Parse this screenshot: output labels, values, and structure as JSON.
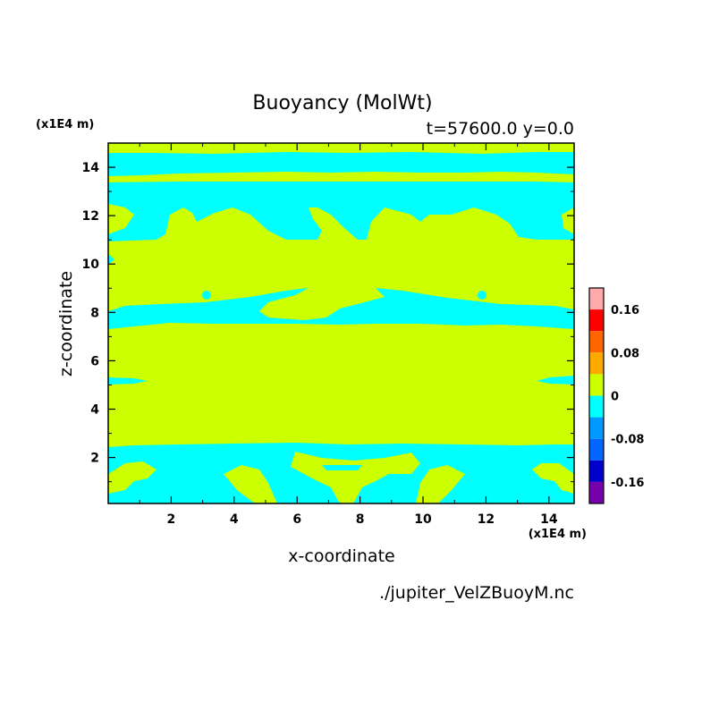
{
  "chart_data": {
    "type": "heatmap",
    "title": "Buoyancy (MolWt)",
    "subtitle": "t=57600.0 y=0.0",
    "xlabel": "x-coordinate",
    "ylabel": "z-coordinate",
    "x_unit": "(x1E4 m)",
    "y_unit": "(x1E4 m)",
    "source": "./jupiter_VelZBuoyM.nc",
    "xlim": [
      0.0,
      14.8
    ],
    "ylim": [
      0.1,
      15.0
    ],
    "x_ticks": [
      2,
      4,
      6,
      8,
      10,
      12,
      14
    ],
    "y_ticks": [
      2,
      4,
      6,
      8,
      10,
      12,
      14
    ],
    "dominant_colors": {
      "zero_to_plus": "#ccff00",
      "minus_to_zero": "#00ffff"
    },
    "colorbar": {
      "tick_labels": [
        "0.16",
        "0.08",
        "0",
        "-0.08",
        "-0.16"
      ],
      "tick_values": [
        0.16,
        0.08,
        0,
        -0.08,
        -0.16
      ],
      "range": [
        -0.2,
        0.2
      ],
      "bands": [
        {
          "from": 0.16,
          "to": 0.2,
          "color": "#ffaaaa"
        },
        {
          "from": 0.12,
          "to": 0.16,
          "color": "#ff0000"
        },
        {
          "from": 0.08,
          "to": 0.12,
          "color": "#ff6600"
        },
        {
          "from": 0.04,
          "to": 0.08,
          "color": "#ffaa00"
        },
        {
          "from": 0.0,
          "to": 0.04,
          "color": "#ccff00"
        },
        {
          "from": -0.04,
          "to": 0.0,
          "color": "#00ffff"
        },
        {
          "from": -0.08,
          "to": -0.04,
          "color": "#0099ff"
        },
        {
          "from": -0.12,
          "to": -0.08,
          "color": "#0066ff"
        },
        {
          "from": -0.16,
          "to": -0.12,
          "color": "#0000cc"
        },
        {
          "from": -0.2,
          "to": -0.16,
          "color": "#7700aa"
        }
      ]
    }
  }
}
